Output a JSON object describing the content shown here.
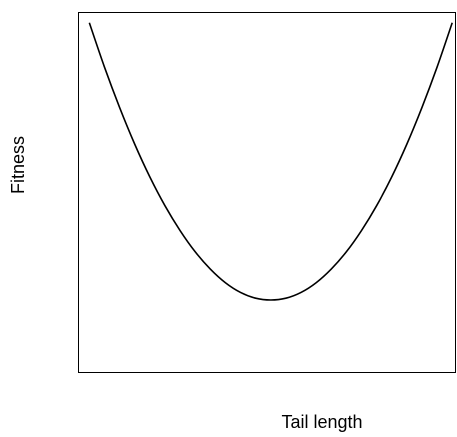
{
  "chart_data": {
    "type": "line",
    "x_label": "Tail length",
    "y_label": "Fitness",
    "x": [
      3,
      7,
      11,
      15,
      19,
      23,
      27,
      31,
      35,
      39,
      43,
      47,
      51,
      55,
      59,
      63,
      67,
      71,
      75,
      79,
      83,
      87,
      91,
      95,
      99
    ],
    "series": [
      {
        "color": "#000000",
        "values": [
          97.0,
          84.7,
          73.5,
          63.3,
          54.2,
          46.2,
          39.3,
          33.4,
          28.6,
          24.8,
          22.1,
          20.5,
          20.0,
          20.5,
          22.1,
          24.8,
          28.6,
          33.4,
          39.3,
          46.2,
          54.2,
          63.3,
          73.5,
          84.7,
          97.0
        ]
      }
    ],
    "xlim": [
      0,
      100
    ],
    "ylim": [
      0,
      100
    ]
  }
}
